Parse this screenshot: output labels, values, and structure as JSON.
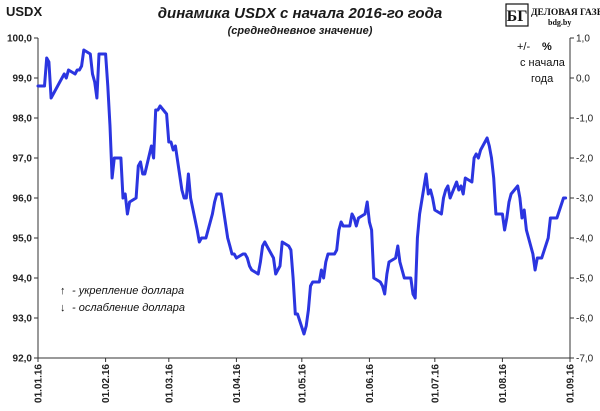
{
  "header": {
    "left_label": "USDX",
    "title": "динамика  USDX с начала 2016-го года",
    "subtitle": "(среднедневное значение)"
  },
  "logo": {
    "mark": "БГ",
    "name": "ДЕЛОВАЯ ГАЗЕТА",
    "site": "bdg.by"
  },
  "right_axis_label": {
    "line1": "+/-",
    "line1_symbol": "%",
    "line2": "с начала",
    "line3": "года"
  },
  "legend": {
    "up_arrow": "↑",
    "up_text": "- укрепление доллара",
    "down_arrow": "↓",
    "down_text": "- ослабление доллара"
  },
  "colors": {
    "line": "#2b35e0",
    "axis": "#333333",
    "tick": "#444444"
  },
  "chart_data": {
    "type": "line",
    "title": "динамика  USDX с начала 2016-го года",
    "subtitle": "(среднедневное значение)",
    "ylabel": "USDX",
    "y2label": "+/- % с начала года",
    "ylim": [
      92.0,
      100.0
    ],
    "yticks": [
      "92,0",
      "93,0",
      "94,0",
      "95,0",
      "96,0",
      "97,0",
      "98,0",
      "99,0",
      "100,0"
    ],
    "y2lim": [
      -7.0,
      1.0
    ],
    "y2ticks": [
      "1,0",
      "0,0",
      "-1,0",
      "-2,0",
      "-3,0",
      "-4,0",
      "-5,0",
      "-6,0",
      "-7,0"
    ],
    "xlim": [
      "2016-01-01",
      "2016-09-01"
    ],
    "xticks": [
      "01.01.16",
      "01.02.16",
      "01.03.16",
      "01.04.16",
      "01.05.16",
      "01.06.16",
      "01.07.16",
      "01.08.16",
      "01.09.16"
    ],
    "grid": false,
    "series": [
      {
        "values": [
          [
            "2016-01-01",
            98.8
          ],
          [
            "2016-01-04",
            98.8
          ],
          [
            "2016-01-05",
            99.5
          ],
          [
            "2016-01-06",
            99.4
          ],
          [
            "2016-01-07",
            98.5
          ],
          [
            "2016-01-08",
            98.6
          ],
          [
            "2016-01-11",
            98.9
          ],
          [
            "2016-01-12",
            99.0
          ],
          [
            "2016-01-13",
            99.1
          ],
          [
            "2016-01-14",
            99.0
          ],
          [
            "2016-01-15",
            99.2
          ],
          [
            "2016-01-18",
            99.1
          ],
          [
            "2016-01-19",
            99.2
          ],
          [
            "2016-01-20",
            99.2
          ],
          [
            "2016-01-21",
            99.3
          ],
          [
            "2016-01-22",
            99.7
          ],
          [
            "2016-01-25",
            99.6
          ],
          [
            "2016-01-26",
            99.1
          ],
          [
            "2016-01-27",
            98.9
          ],
          [
            "2016-01-28",
            98.5
          ],
          [
            "2016-01-29",
            99.6
          ],
          [
            "2016-02-01",
            99.6
          ],
          [
            "2016-02-02",
            98.8
          ],
          [
            "2016-02-03",
            97.8
          ],
          [
            "2016-02-04",
            96.5
          ],
          [
            "2016-02-05",
            97.0
          ],
          [
            "2016-02-08",
            97.0
          ],
          [
            "2016-02-09",
            96.0
          ],
          [
            "2016-02-10",
            96.1
          ],
          [
            "2016-02-11",
            95.6
          ],
          [
            "2016-02-12",
            95.9
          ],
          [
            "2016-02-15",
            96.0
          ],
          [
            "2016-02-16",
            96.8
          ],
          [
            "2016-02-17",
            96.9
          ],
          [
            "2016-02-18",
            96.6
          ],
          [
            "2016-02-19",
            96.6
          ],
          [
            "2016-02-22",
            97.3
          ],
          [
            "2016-02-23",
            97.0
          ],
          [
            "2016-02-24",
            98.2
          ],
          [
            "2016-02-25",
            98.2
          ],
          [
            "2016-02-26",
            98.3
          ],
          [
            "2016-02-29",
            98.1
          ],
          [
            "2016-03-01",
            97.4
          ],
          [
            "2016-03-02",
            97.4
          ],
          [
            "2016-03-03",
            97.2
          ],
          [
            "2016-03-04",
            97.3
          ],
          [
            "2016-03-07",
            96.2
          ],
          [
            "2016-03-08",
            96.0
          ],
          [
            "2016-03-09",
            96.0
          ],
          [
            "2016-03-10",
            96.6
          ],
          [
            "2016-03-11",
            96.0
          ],
          [
            "2016-03-14",
            95.2
          ],
          [
            "2016-03-15",
            94.9
          ],
          [
            "2016-03-16",
            95.0
          ],
          [
            "2016-03-17",
            95.0
          ],
          [
            "2016-03-18",
            95.0
          ],
          [
            "2016-03-21",
            95.6
          ],
          [
            "2016-03-22",
            95.9
          ],
          [
            "2016-03-23",
            96.1
          ],
          [
            "2016-03-24",
            96.1
          ],
          [
            "2016-03-25",
            96.1
          ],
          [
            "2016-03-28",
            95.0
          ],
          [
            "2016-03-29",
            94.8
          ],
          [
            "2016-03-30",
            94.6
          ],
          [
            "2016-03-31",
            94.6
          ],
          [
            "2016-04-01",
            94.5
          ],
          [
            "2016-04-04",
            94.6
          ],
          [
            "2016-04-05",
            94.6
          ],
          [
            "2016-04-06",
            94.5
          ],
          [
            "2016-04-07",
            94.3
          ],
          [
            "2016-04-08",
            94.2
          ],
          [
            "2016-04-11",
            94.1
          ],
          [
            "2016-04-12",
            94.4
          ],
          [
            "2016-04-13",
            94.8
          ],
          [
            "2016-04-14",
            94.9
          ],
          [
            "2016-04-15",
            94.8
          ],
          [
            "2016-04-18",
            94.5
          ],
          [
            "2016-04-19",
            94.1
          ],
          [
            "2016-04-20",
            94.2
          ],
          [
            "2016-04-21",
            94.3
          ],
          [
            "2016-04-22",
            94.9
          ],
          [
            "2016-04-25",
            94.8
          ],
          [
            "2016-04-26",
            94.7
          ],
          [
            "2016-04-27",
            94.0
          ],
          [
            "2016-04-28",
            93.1
          ],
          [
            "2016-04-29",
            93.1
          ],
          [
            "2016-05-02",
            92.6
          ],
          [
            "2016-05-03",
            92.8
          ],
          [
            "2016-05-04",
            93.2
          ],
          [
            "2016-05-05",
            93.8
          ],
          [
            "2016-05-06",
            93.9
          ],
          [
            "2016-05-09",
            93.9
          ],
          [
            "2016-05-10",
            94.2
          ],
          [
            "2016-05-11",
            94.0
          ],
          [
            "2016-05-12",
            94.4
          ],
          [
            "2016-05-13",
            94.6
          ],
          [
            "2016-05-16",
            94.6
          ],
          [
            "2016-05-17",
            94.7
          ],
          [
            "2016-05-18",
            95.2
          ],
          [
            "2016-05-19",
            95.4
          ],
          [
            "2016-05-20",
            95.3
          ],
          [
            "2016-05-23",
            95.3
          ],
          [
            "2016-05-24",
            95.6
          ],
          [
            "2016-05-25",
            95.5
          ],
          [
            "2016-05-26",
            95.3
          ],
          [
            "2016-05-27",
            95.5
          ],
          [
            "2016-05-30",
            95.6
          ],
          [
            "2016-05-31",
            95.9
          ],
          [
            "2016-06-01",
            95.4
          ],
          [
            "2016-06-02",
            95.2
          ],
          [
            "2016-06-03",
            94.0
          ],
          [
            "2016-06-06",
            93.9
          ],
          [
            "2016-06-07",
            93.8
          ],
          [
            "2016-06-08",
            93.6
          ],
          [
            "2016-06-09",
            94.1
          ],
          [
            "2016-06-10",
            94.4
          ],
          [
            "2016-06-13",
            94.5
          ],
          [
            "2016-06-14",
            94.8
          ],
          [
            "2016-06-15",
            94.4
          ],
          [
            "2016-06-16",
            94.2
          ],
          [
            "2016-06-17",
            94.0
          ],
          [
            "2016-06-20",
            94.0
          ],
          [
            "2016-06-21",
            93.6
          ],
          [
            "2016-06-22",
            93.5
          ],
          [
            "2016-06-23",
            95.0
          ],
          [
            "2016-06-24",
            95.6
          ],
          [
            "2016-06-27",
            96.6
          ],
          [
            "2016-06-28",
            96.1
          ],
          [
            "2016-06-29",
            96.2
          ],
          [
            "2016-06-30",
            96.0
          ],
          [
            "2016-07-01",
            95.7
          ],
          [
            "2016-07-04",
            95.6
          ],
          [
            "2016-07-05",
            96.0
          ],
          [
            "2016-07-06",
            96.2
          ],
          [
            "2016-07-07",
            96.3
          ],
          [
            "2016-07-08",
            96.0
          ],
          [
            "2016-07-11",
            96.4
          ],
          [
            "2016-07-12",
            96.2
          ],
          [
            "2016-07-13",
            96.3
          ],
          [
            "2016-07-14",
            96.1
          ],
          [
            "2016-07-15",
            96.5
          ],
          [
            "2016-07-18",
            96.4
          ],
          [
            "2016-07-19",
            97.0
          ],
          [
            "2016-07-20",
            97.1
          ],
          [
            "2016-07-21",
            97.0
          ],
          [
            "2016-07-22",
            97.2
          ],
          [
            "2016-07-25",
            97.5
          ],
          [
            "2016-07-26",
            97.3
          ],
          [
            "2016-07-27",
            97.0
          ],
          [
            "2016-07-28",
            96.5
          ],
          [
            "2016-07-29",
            95.6
          ],
          [
            "2016-08-01",
            95.6
          ],
          [
            "2016-08-02",
            95.2
          ],
          [
            "2016-08-03",
            95.5
          ],
          [
            "2016-08-04",
            95.9
          ],
          [
            "2016-08-05",
            96.1
          ],
          [
            "2016-08-08",
            96.3
          ],
          [
            "2016-08-09",
            96.0
          ],
          [
            "2016-08-10",
            95.5
          ],
          [
            "2016-08-11",
            95.7
          ],
          [
            "2016-08-12",
            95.2
          ],
          [
            "2016-08-15",
            94.6
          ],
          [
            "2016-08-16",
            94.2
          ],
          [
            "2016-08-17",
            94.5
          ],
          [
            "2016-08-18",
            94.5
          ],
          [
            "2016-08-19",
            94.5
          ],
          [
            "2016-08-22",
            95.0
          ],
          [
            "2016-08-23",
            95.5
          ],
          [
            "2016-08-24",
            95.5
          ],
          [
            "2016-08-25",
            95.5
          ],
          [
            "2016-08-26",
            95.5
          ],
          [
            "2016-08-29",
            96.0
          ],
          [
            "2016-08-30",
            96.0
          ]
        ]
      }
    ]
  }
}
